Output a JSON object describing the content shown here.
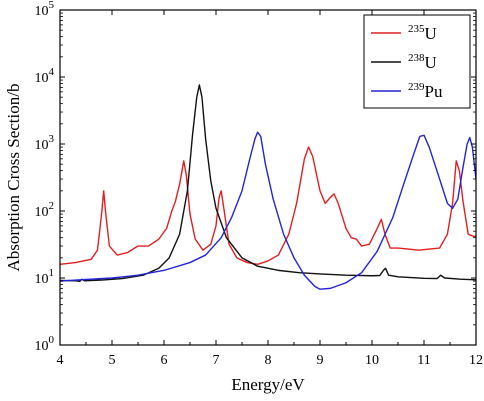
{
  "chart_data": {
    "type": "line",
    "title": "",
    "xlabel": "Energy/eV",
    "ylabel": "Absorption Cross Section/b",
    "xlim": [
      4,
      12
    ],
    "ylim": [
      1,
      100000
    ],
    "yscale": "log",
    "grid": false,
    "legend_position": "top-right",
    "x_ticks": [
      "4",
      "5",
      "6",
      "7",
      "8",
      "9",
      "10",
      "11",
      "12"
    ],
    "y_ticks": [
      {
        "value": 1,
        "base": "10",
        "exp": "0"
      },
      {
        "value": 10,
        "base": "10",
        "exp": "1"
      },
      {
        "value": 100,
        "base": "10",
        "exp": "2"
      },
      {
        "value": 1000,
        "base": "10",
        "exp": "3"
      },
      {
        "value": 10000,
        "base": "10",
        "exp": "4"
      },
      {
        "value": 100000,
        "base": "10",
        "exp": "5"
      }
    ],
    "series": [
      {
        "name": "235U",
        "mass": "235",
        "symbol": "U",
        "color": "#e02020",
        "points": [
          [
            4.0,
            16
          ],
          [
            4.3,
            17
          ],
          [
            4.6,
            19
          ],
          [
            4.72,
            26
          ],
          [
            4.8,
            90
          ],
          [
            4.84,
            200
          ],
          [
            4.88,
            90
          ],
          [
            4.95,
            30
          ],
          [
            5.1,
            22
          ],
          [
            5.3,
            24
          ],
          [
            5.5,
            30
          ],
          [
            5.7,
            30
          ],
          [
            5.9,
            38
          ],
          [
            6.05,
            55
          ],
          [
            6.15,
            100
          ],
          [
            6.22,
            140
          ],
          [
            6.3,
            250
          ],
          [
            6.38,
            560
          ],
          [
            6.43,
            340
          ],
          [
            6.5,
            90
          ],
          [
            6.6,
            38
          ],
          [
            6.75,
            26
          ],
          [
            6.9,
            32
          ],
          [
            7.0,
            60
          ],
          [
            7.06,
            160
          ],
          [
            7.1,
            200
          ],
          [
            7.15,
            110
          ],
          [
            7.25,
            32
          ],
          [
            7.4,
            20
          ],
          [
            7.6,
            17
          ],
          [
            7.8,
            16
          ],
          [
            8.0,
            18
          ],
          [
            8.2,
            22
          ],
          [
            8.4,
            45
          ],
          [
            8.55,
            130
          ],
          [
            8.7,
            600
          ],
          [
            8.78,
            900
          ],
          [
            8.86,
            650
          ],
          [
            9.0,
            200
          ],
          [
            9.1,
            130
          ],
          [
            9.2,
            160
          ],
          [
            9.27,
            180
          ],
          [
            9.35,
            130
          ],
          [
            9.5,
            55
          ],
          [
            9.6,
            40
          ],
          [
            9.7,
            38
          ],
          [
            9.8,
            30
          ],
          [
            9.95,
            32
          ],
          [
            10.1,
            55
          ],
          [
            10.18,
            75
          ],
          [
            10.25,
            45
          ],
          [
            10.35,
            28
          ],
          [
            10.5,
            28
          ],
          [
            10.7,
            27
          ],
          [
            10.9,
            26
          ],
          [
            11.1,
            27
          ],
          [
            11.3,
            28
          ],
          [
            11.45,
            45
          ],
          [
            11.55,
            130
          ],
          [
            11.62,
            560
          ],
          [
            11.68,
            400
          ],
          [
            11.75,
            140
          ],
          [
            11.85,
            45
          ],
          [
            11.95,
            42
          ],
          [
            12.0,
            42
          ]
        ]
      },
      {
        "name": "238U",
        "mass": "238",
        "symbol": "U",
        "color": "#111111",
        "points": [
          [
            4.0,
            9.2
          ],
          [
            4.3,
            9.1
          ],
          [
            4.38,
            8.9
          ],
          [
            4.42,
            9.6
          ],
          [
            4.47,
            9.1
          ],
          [
            4.8,
            9.3
          ],
          [
            5.2,
            9.8
          ],
          [
            5.6,
            11
          ],
          [
            5.9,
            14
          ],
          [
            6.1,
            20
          ],
          [
            6.3,
            45
          ],
          [
            6.45,
            200
          ],
          [
            6.55,
            1400
          ],
          [
            6.63,
            5000
          ],
          [
            6.68,
            7600
          ],
          [
            6.73,
            5000
          ],
          [
            6.8,
            1200
          ],
          [
            6.9,
            280
          ],
          [
            7.0,
            110
          ],
          [
            7.2,
            40
          ],
          [
            7.5,
            20
          ],
          [
            7.8,
            15
          ],
          [
            8.2,
            13
          ],
          [
            8.6,
            12
          ],
          [
            9.0,
            11.5
          ],
          [
            9.5,
            11
          ],
          [
            10.0,
            10.8
          ],
          [
            10.15,
            10.9
          ],
          [
            10.22,
            13
          ],
          [
            10.26,
            14
          ],
          [
            10.32,
            11
          ],
          [
            10.5,
            10.4
          ],
          [
            11.0,
            9.9
          ],
          [
            11.25,
            9.8
          ],
          [
            11.32,
            11
          ],
          [
            11.4,
            10
          ],
          [
            11.7,
            9.6
          ],
          [
            12.0,
            9.4
          ]
        ]
      },
      {
        "name": "239Pu",
        "mass": "239",
        "symbol": "Pu",
        "color": "#2323d6",
        "points": [
          [
            4.0,
            9.0
          ],
          [
            4.5,
            9.5
          ],
          [
            5.0,
            10
          ],
          [
            5.5,
            11
          ],
          [
            6.0,
            13
          ],
          [
            6.5,
            17
          ],
          [
            6.8,
            22
          ],
          [
            7.1,
            40
          ],
          [
            7.3,
            80
          ],
          [
            7.5,
            200
          ],
          [
            7.65,
            600
          ],
          [
            7.75,
            1200
          ],
          [
            7.8,
            1500
          ],
          [
            7.86,
            1300
          ],
          [
            7.95,
            500
          ],
          [
            8.1,
            150
          ],
          [
            8.3,
            45
          ],
          [
            8.5,
            20
          ],
          [
            8.7,
            11
          ],
          [
            8.9,
            7.5
          ],
          [
            9.0,
            6.8
          ],
          [
            9.2,
            7
          ],
          [
            9.5,
            8.5
          ],
          [
            9.8,
            12
          ],
          [
            10.1,
            25
          ],
          [
            10.4,
            80
          ],
          [
            10.6,
            240
          ],
          [
            10.8,
            700
          ],
          [
            10.92,
            1300
          ],
          [
            11.0,
            1350
          ],
          [
            11.1,
            900
          ],
          [
            11.3,
            300
          ],
          [
            11.45,
            130
          ],
          [
            11.55,
            110
          ],
          [
            11.65,
            150
          ],
          [
            11.75,
            450
          ],
          [
            11.83,
            1000
          ],
          [
            11.88,
            1250
          ],
          [
            11.93,
            900
          ],
          [
            12.0,
            300
          ]
        ]
      }
    ]
  }
}
